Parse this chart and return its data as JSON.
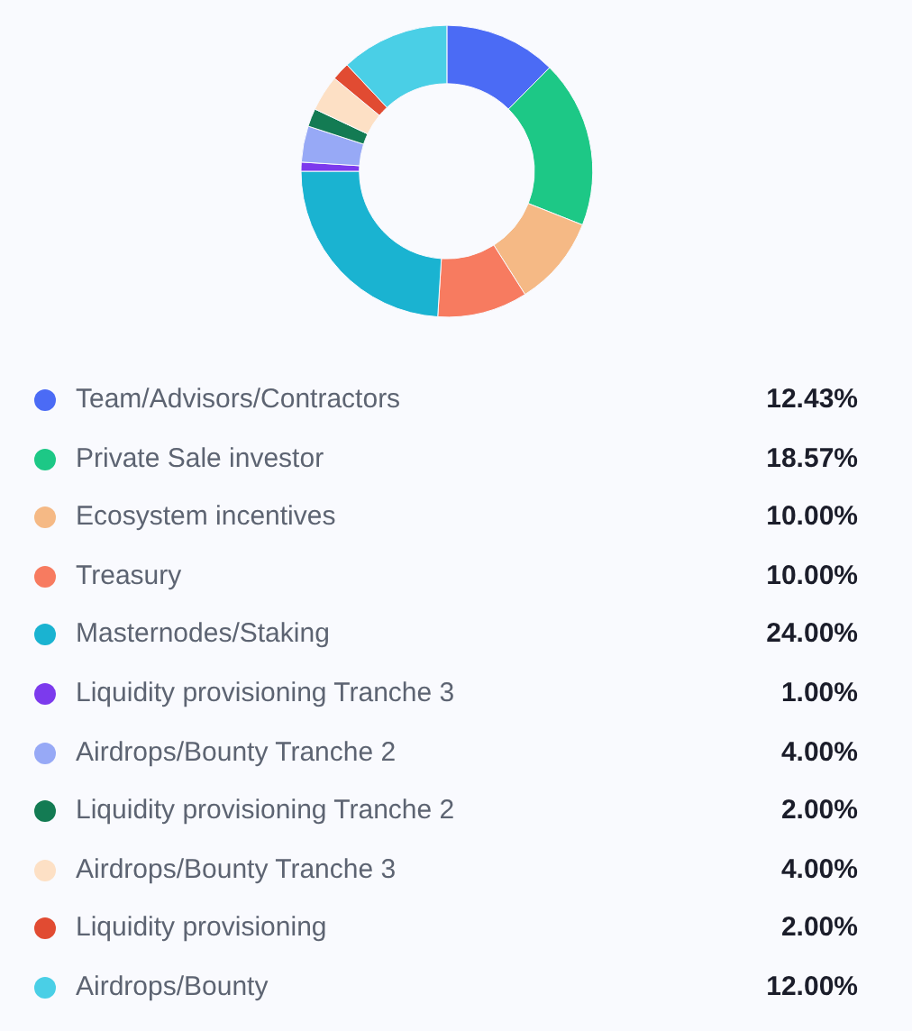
{
  "chart_data": {
    "type": "donut",
    "categories": [
      "Team/Advisors/Contractors",
      "Private Sale investor",
      "Ecosystem incentives",
      "Treasury",
      "Masternodes/Staking",
      "Liquidity provisioning Tranche 3",
      "Airdrops/Bounty Tranche 2",
      "Liquidity provisioning Tranche 2",
      "Airdrops/Bounty Tranche 3",
      "Liquidity provisioning",
      "Airdrops/Bounty"
    ],
    "values": [
      12.43,
      18.57,
      10,
      10,
      24,
      1,
      4,
      2,
      4,
      2,
      12
    ],
    "colors": [
      "#4b6bf5",
      "#1dc886",
      "#f5b985",
      "#f77b60",
      "#1ab3d1",
      "#7c3aed",
      "#97a9f6",
      "#137b53",
      "#fde0c5",
      "#e14b32",
      "#4acfe6"
    ],
    "value_labels": [
      "12.43%",
      "18.57%",
      "10.00%",
      "10.00%",
      "24.00%",
      "1.00%",
      "4.00%",
      "2.00%",
      "4.00%",
      "2.00%",
      "12.00%"
    ],
    "legend": "bottom"
  }
}
